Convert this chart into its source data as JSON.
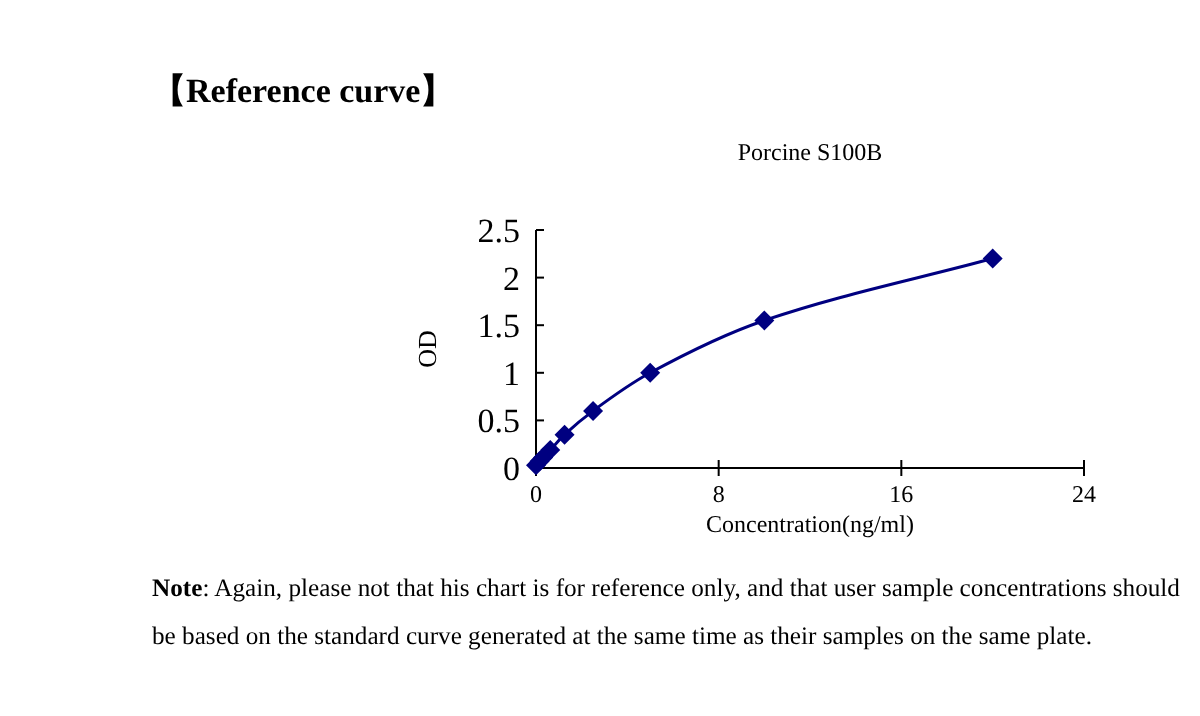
{
  "chart_data": {
    "type": "line",
    "title": "【Reference curve】",
    "subtitle": "Porcine S100B",
    "xlabel": "Concentration(ng/ml)",
    "ylabel": "OD",
    "x": [
      0,
      0.156,
      0.312,
      0.625,
      1.25,
      2.5,
      5,
      10,
      20
    ],
    "series": [
      {
        "color": "#000080",
        "values": [
          0.03,
          0.07,
          0.11,
          0.19,
          0.35,
          0.6,
          1.0,
          1.55,
          2.2
        ]
      }
    ],
    "xlim": [
      0,
      24
    ],
    "xticks": [
      0,
      8,
      16,
      24
    ],
    "ylim": [
      0,
      2.5
    ],
    "yticks": [
      0,
      0.5,
      1,
      1.5,
      2,
      2.5
    ],
    "marker": "diamond",
    "line_style": "solid",
    "grid": false,
    "annotations": [
      "Note: Again, please not that his chart is for reference only, and that user sample concentrations should be based on the standard curve generated at the same time as their samples on the same plate."
    ]
  }
}
